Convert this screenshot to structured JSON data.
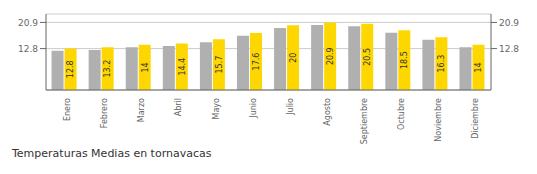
{
  "chart_data": {
    "type": "bar",
    "title": "Temperaturas Medias en tornavacas",
    "categories": [
      "Enero",
      "Febrero",
      "Marzo",
      "Abril",
      "Mayo",
      "Junio",
      "Julio",
      "Agosto",
      "Septiembre",
      "Octubre",
      "Noviembre",
      "Diciembre"
    ],
    "series": [
      {
        "color": "#B0B0B0",
        "values": [
          12.1,
          12.4,
          13.2,
          13.6,
          14.8,
          16.8,
          19.2,
          20.1,
          19.7,
          17.7,
          15.5,
          13.2
        ]
      },
      {
        "color": "#FFD700",
        "values": [
          12.8,
          13.2,
          14.0,
          14.4,
          15.7,
          17.6,
          20.0,
          20.9,
          20.5,
          18.5,
          16.3,
          14.0
        ],
        "data_labels": true
      }
    ],
    "ylim": [
      0,
      23.5
    ],
    "yticks": [
      12.8,
      20.9
    ],
    "y2lim": [
      0,
      23.5
    ],
    "y2ticks": [
      12.8,
      20.9
    ],
    "grid": true
  }
}
